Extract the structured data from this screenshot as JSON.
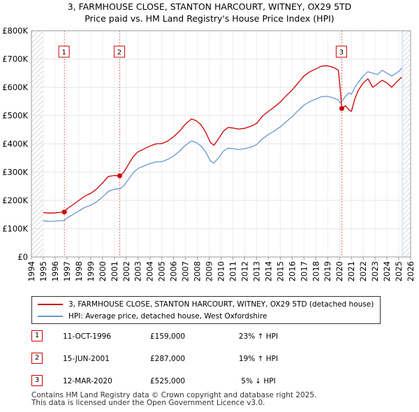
{
  "header": {
    "title": "3, FARMHOUSE CLOSE, STANTON HARCOURT, WITNEY, OX29 5TD",
    "subtitle": "Price paid vs. HM Land Registry's House Price Index (HPI)"
  },
  "colors": {
    "property": "#cc0000",
    "hpi": "#6a96cc",
    "hatch": "#cccccc",
    "shade": "#dde6f2"
  },
  "chart_data": {
    "type": "line",
    "title": "3, FARMHOUSE CLOSE, STANTON HARCOURT, WITNEY, OX29 5TD",
    "subtitle": "Price paid vs. HM Land Registry's House Price Index (HPI)",
    "xlabel": "",
    "ylabel": "",
    "xlim": [
      1994,
      2026
    ],
    "ylim": [
      0,
      800000
    ],
    "x_ticks": [
      1994,
      1995,
      1996,
      1997,
      1998,
      1999,
      2000,
      2001,
      2002,
      2003,
      2004,
      2005,
      2006,
      2007,
      2008,
      2009,
      2010,
      2011,
      2012,
      2013,
      2014,
      2015,
      2016,
      2017,
      2018,
      2019,
      2020,
      2021,
      2022,
      2023,
      2024,
      2025,
      2026
    ],
    "y_ticks": [
      {
        "value": 0,
        "label": "£0"
      },
      {
        "value": 100000,
        "label": "£100K"
      },
      {
        "value": 200000,
        "label": "£200K"
      },
      {
        "value": 300000,
        "label": "£300K"
      },
      {
        "value": 400000,
        "label": "£400K"
      },
      {
        "value": 500000,
        "label": "£500K"
      },
      {
        "value": 600000,
        "label": "£600K"
      },
      {
        "value": 700000,
        "label": "£700K"
      },
      {
        "value": 800000,
        "label": "£800K"
      }
    ],
    "data_start": 1995.0,
    "data_end": 2025.25,
    "series": [
      {
        "name": "3, FARMHOUSE CLOSE, STANTON HARCOURT, WITNEY, OX29 5TD (detached house)",
        "color": "#cc0000",
        "x": [
          1995.0,
          1995.5,
          1996.0,
          1996.5,
          1996.78,
          1997.0,
          1997.5,
          1998.0,
          1998.5,
          1999.0,
          1999.5,
          2000.0,
          2000.5,
          2001.0,
          2001.45,
          2001.8,
          2002.2,
          2002.6,
          2003.0,
          2003.5,
          2004.0,
          2004.5,
          2005.0,
          2005.5,
          2006.0,
          2006.5,
          2007.0,
          2007.5,
          2007.9,
          2008.3,
          2008.7,
          2009.1,
          2009.4,
          2009.8,
          2010.2,
          2010.6,
          2011.0,
          2011.5,
          2012.0,
          2012.5,
          2013.0,
          2013.5,
          2014.0,
          2014.5,
          2015.0,
          2015.5,
          2016.0,
          2016.5,
          2017.0,
          2017.5,
          2018.0,
          2018.5,
          2019.0,
          2019.5,
          2019.9,
          2020.05,
          2020.19,
          2020.5,
          2020.8,
          2021.0,
          2021.3,
          2021.6,
          2022.0,
          2022.4,
          2022.8,
          2023.2,
          2023.6,
          2024.0,
          2024.4,
          2024.8,
          2025.1,
          2025.25
        ],
        "y": [
          157000,
          155000,
          156000,
          158000,
          159000,
          170000,
          185000,
          200000,
          215000,
          225000,
          240000,
          262000,
          285000,
          288000,
          287000,
          300000,
          328000,
          355000,
          372000,
          382000,
          392000,
          400000,
          401000,
          410000,
          425000,
          445000,
          470000,
          488000,
          482000,
          468000,
          442000,
          405000,
          395000,
          418000,
          445000,
          458000,
          456000,
          452000,
          455000,
          462000,
          472000,
          498000,
          515000,
          530000,
          548000,
          570000,
          590000,
          615000,
          640000,
          655000,
          665000,
          675000,
          676000,
          670000,
          660000,
          600000,
          525000,
          535000,
          520000,
          515000,
          560000,
          590000,
          615000,
          630000,
          600000,
          612000,
          625000,
          615000,
          600000,
          618000,
          630000,
          635000
        ]
      },
      {
        "name": "HPI: Average price, detached house, West Oxfordshire",
        "color": "#6a96cc",
        "x": [
          1995.0,
          1995.5,
          1996.0,
          1996.5,
          1996.78,
          1997.0,
          1997.5,
          1998.0,
          1998.5,
          1999.0,
          1999.5,
          2000.0,
          2000.5,
          2001.0,
          2001.45,
          2001.8,
          2002.2,
          2002.6,
          2003.0,
          2003.5,
          2004.0,
          2004.5,
          2005.0,
          2005.5,
          2006.0,
          2006.5,
          2007.0,
          2007.5,
          2007.9,
          2008.3,
          2008.7,
          2009.1,
          2009.4,
          2009.8,
          2010.2,
          2010.6,
          2011.0,
          2011.5,
          2012.0,
          2012.5,
          2013.0,
          2013.5,
          2014.0,
          2014.5,
          2015.0,
          2015.5,
          2016.0,
          2016.5,
          2017.0,
          2017.5,
          2018.0,
          2018.5,
          2019.0,
          2019.5,
          2019.9,
          2020.05,
          2020.19,
          2020.5,
          2020.8,
          2021.0,
          2021.3,
          2021.6,
          2022.0,
          2022.4,
          2022.8,
          2023.2,
          2023.6,
          2024.0,
          2024.4,
          2024.8,
          2025.1,
          2025.25
        ],
        "y": [
          128000,
          126000,
          127000,
          128500,
          129000,
          138000,
          150000,
          163000,
          175000,
          183000,
          195000,
          212000,
          232000,
          240000,
          241000,
          252000,
          275000,
          298000,
          313000,
          322000,
          330000,
          336000,
          337000,
          345000,
          357000,
          374000,
          395000,
          410000,
          405000,
          393000,
          372000,
          340000,
          332000,
          351000,
          374000,
          385000,
          383000,
          380000,
          383000,
          388000,
          397000,
          418000,
          433000,
          446000,
          460000,
          478000,
          496000,
          517000,
          537000,
          550000,
          558000,
          567000,
          568000,
          562000,
          555000,
          545000,
          550000,
          568000,
          580000,
          575000,
          600000,
          618000,
          640000,
          655000,
          650000,
          645000,
          660000,
          650000,
          640000,
          650000,
          660000,
          668000
        ]
      }
    ],
    "sales": [
      {
        "label": "1",
        "x": 1996.78,
        "price": 159000
      },
      {
        "label": "2",
        "x": 2001.45,
        "price": 287000
      },
      {
        "label": "3",
        "x": 2020.19,
        "price": 525000
      }
    ]
  },
  "legend": {
    "property_label": "3, FARMHOUSE CLOSE, STANTON HARCOURT, WITNEY, OX29 5TD (detached house)",
    "hpi_label": "HPI: Average price, detached house, West Oxfordshire"
  },
  "sales_table": [
    {
      "num": "1",
      "date": "11-OCT-1996",
      "price": "£159,000",
      "delta": "23% ↑ HPI"
    },
    {
      "num": "2",
      "date": "15-JUN-2001",
      "price": "£287,000",
      "delta": "19% ↑ HPI"
    },
    {
      "num": "3",
      "date": "12-MAR-2020",
      "price": "£525,000",
      "delta": "5% ↓ HPI"
    }
  ],
  "footer": {
    "line1": "Contains HM Land Registry data © Crown copyright and database right 2025.",
    "line2": "This data is licensed under the Open Government Licence v3.0."
  }
}
